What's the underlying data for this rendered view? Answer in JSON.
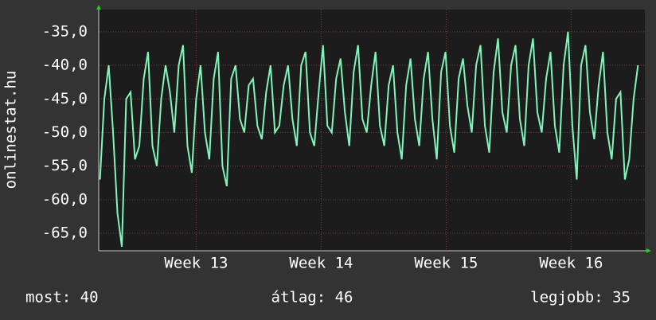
{
  "chart_data": {
    "type": "line",
    "ylabel": "onlinestat.hu",
    "x": [
      12.23,
      12.265,
      12.3,
      12.335,
      12.37,
      12.405,
      12.44,
      12.475,
      12.51,
      12.545,
      12.58,
      12.615,
      12.65,
      12.685,
      12.72,
      12.755,
      12.79,
      12.825,
      12.86,
      12.895,
      12.93,
      12.965,
      13,
      13.035,
      13.07,
      13.105,
      13.14,
      13.175,
      13.21,
      13.245,
      13.28,
      13.315,
      13.35,
      13.385,
      13.42,
      13.455,
      13.49,
      13.525,
      13.56,
      13.595,
      13.63,
      13.665,
      13.7,
      13.735,
      13.77,
      13.805,
      13.84,
      13.875,
      13.91,
      13.945,
      13.98,
      14.015,
      14.05,
      14.085,
      14.12,
      14.155,
      14.19,
      14.225,
      14.26,
      14.295,
      14.33,
      14.365,
      14.4,
      14.435,
      14.47,
      14.505,
      14.54,
      14.575,
      14.61,
      14.645,
      14.68,
      14.715,
      14.75,
      14.785,
      14.82,
      14.855,
      14.89,
      14.925,
      14.96,
      14.995,
      15.03,
      15.065,
      15.1,
      15.135,
      15.17,
      15.205,
      15.24,
      15.275,
      15.31,
      15.345,
      15.38,
      15.415,
      15.45,
      15.485,
      15.52,
      15.555,
      15.59,
      15.625,
      15.66,
      15.695,
      15.73,
      15.765,
      15.8,
      15.835,
      15.87,
      15.905,
      15.94,
      15.975,
      16.01,
      16.045,
      16.08,
      16.115,
      16.15,
      16.185,
      16.22,
      16.255,
      16.29,
      16.325,
      16.36,
      16.395,
      16.43,
      16.465,
      16.5,
      16.535
    ],
    "series": [
      {
        "color": "#80f5b8",
        "values": [
          -57,
          -45,
          -40,
          -50,
          -62,
          -67,
          -45,
          -44,
          -54,
          -52,
          -42,
          -38,
          -52,
          -55,
          -45,
          -40,
          -44,
          -50,
          -40,
          -37,
          -52,
          -56,
          -45,
          -40,
          -50,
          -54,
          -42,
          -38,
          -55,
          -58,
          -42,
          -40,
          -48,
          -50,
          -43,
          -42,
          -49,
          -51,
          -44,
          -40,
          -50,
          -49,
          -43,
          -40,
          -48,
          -52,
          -40,
          -38,
          -50,
          -52,
          -44,
          -37,
          -49,
          -50,
          -42,
          -39,
          -47,
          -52,
          -41,
          -37,
          -48,
          -50,
          -43,
          -38,
          -49,
          -52,
          -43,
          -40,
          -50,
          -54,
          -43,
          -39,
          -48,
          -52,
          -42,
          -38,
          -48,
          -54,
          -41,
          -38,
          -49,
          -53,
          -42,
          -39,
          -46,
          -50,
          -40,
          -37,
          -49,
          -53,
          -41,
          -36,
          -47,
          -50,
          -40,
          -37,
          -48,
          -52,
          -40,
          -36,
          -47,
          -50,
          -42,
          -38,
          -49,
          -53,
          -40,
          -35,
          -49,
          -57,
          -40,
          -37,
          -47,
          -51,
          -43,
          -38,
          -50,
          -54,
          -45,
          -44,
          -57,
          -54,
          -45,
          -40
        ]
      }
    ],
    "xlim": [
      12.22,
      16.59
    ],
    "xticks": [
      {
        "value": 13,
        "label": "Week 13"
      },
      {
        "value": 14,
        "label": "Week 14"
      },
      {
        "value": 15,
        "label": "Week 15"
      },
      {
        "value": 16,
        "label": "Week 16"
      }
    ],
    "ylim": [
      -67.6,
      -31.7
    ],
    "yticks": [
      {
        "value": -65,
        "label": "-65,0"
      },
      {
        "value": -60,
        "label": "-60,0"
      },
      {
        "value": -55,
        "label": "-55,0"
      },
      {
        "value": -50,
        "label": "-50,0"
      },
      {
        "value": -45,
        "label": "-45,0"
      },
      {
        "value": -40,
        "label": "-40,0"
      },
      {
        "value": -35,
        "label": "-35,0"
      }
    ],
    "grid": true,
    "footer": [
      "most: 40",
      "átlag: 46",
      "legjobb: 35"
    ]
  }
}
